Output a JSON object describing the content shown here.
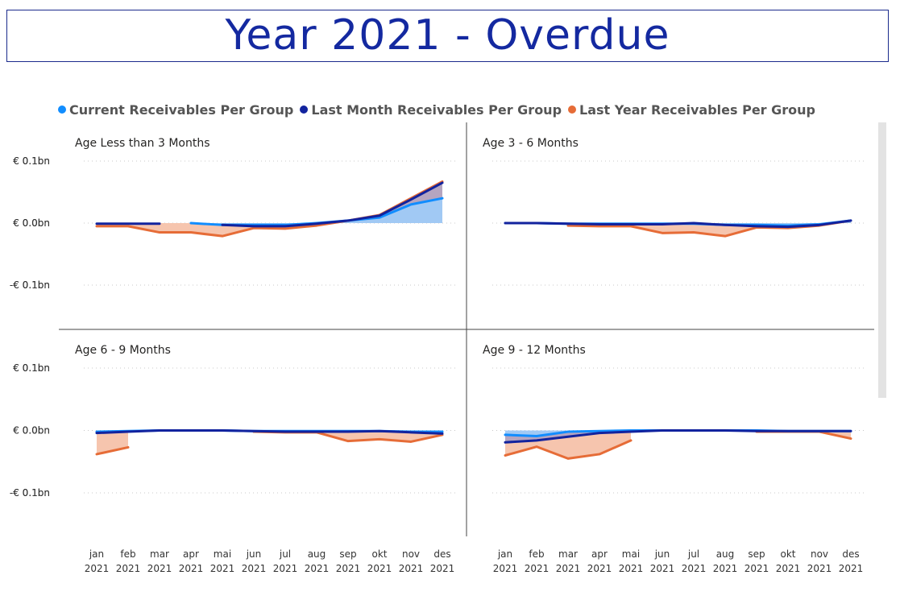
{
  "header": {
    "title": "Year 2021 - Overdue"
  },
  "legend": {
    "items": [
      {
        "label": "Current Receivables Per Group",
        "color": "#118dff"
      },
      {
        "label": "Last Month Receivables Per Group",
        "color": "#12239e"
      },
      {
        "label": "Last Year Receivables Per Group",
        "color": "#e66c37"
      }
    ]
  },
  "chart_data": {
    "type": "line",
    "y_unit": "€ bn",
    "ylim": [
      -0.16,
      0.1
    ],
    "yticks": [
      {
        "value": 0.1,
        "label": "€ 0.1bn"
      },
      {
        "value": 0.0,
        "label": "€ 0.0bn"
      },
      {
        "value": -0.1,
        "label": "-€ 0.1bn"
      }
    ],
    "grid": true,
    "legend_position": "top",
    "categories": [
      [
        "jan",
        "2021"
      ],
      [
        "feb",
        "2021"
      ],
      [
        "mar",
        "2021"
      ],
      [
        "apr",
        "2021"
      ],
      [
        "mai",
        "2021"
      ],
      [
        "jun",
        "2021"
      ],
      [
        "jul",
        "2021"
      ],
      [
        "aug",
        "2021"
      ],
      [
        "sep",
        "2021"
      ],
      [
        "okt",
        "2021"
      ],
      [
        "nov",
        "2021"
      ],
      [
        "des",
        "2021"
      ]
    ],
    "panels": [
      {
        "title": "Age Less than 3 Months",
        "series": [
          {
            "name": "Current Receivables Per Group",
            "values": [
              null,
              null,
              null,
              0.0,
              -0.003,
              -0.003,
              -0.003,
              0.0,
              0.004,
              0.009,
              0.03,
              0.04
            ]
          },
          {
            "name": "Last Month Receivables Per Group",
            "values": [
              -0.001,
              -0.001,
              -0.001,
              null,
              -0.003,
              -0.005,
              -0.005,
              -0.001,
              0.004,
              0.012,
              0.038,
              0.065
            ]
          },
          {
            "name": "Last Year Receivables Per Group",
            "values": [
              -0.005,
              -0.005,
              -0.015,
              -0.015,
              -0.021,
              -0.008,
              -0.009,
              -0.004,
              0.004,
              0.013,
              0.04,
              0.067
            ]
          }
        ]
      },
      {
        "title": "Age 3 - 6 Months",
        "series": [
          {
            "name": "Current Receivables Per Group",
            "values": [
              0.0,
              0.0,
              -0.001,
              -0.001,
              -0.001,
              -0.001,
              -0.001,
              -0.003,
              -0.003,
              -0.004,
              -0.002,
              0.004
            ]
          },
          {
            "name": "Last Month Receivables Per Group",
            "values": [
              0.0,
              0.0,
              -0.001,
              -0.002,
              -0.002,
              -0.002,
              0.0,
              -0.003,
              -0.005,
              -0.006,
              -0.003,
              0.004
            ]
          },
          {
            "name": "Last Year Receivables Per Group",
            "values": [
              null,
              null,
              -0.004,
              -0.005,
              -0.005,
              -0.016,
              -0.015,
              -0.021,
              -0.007,
              -0.008,
              -0.004,
              0.004
            ]
          }
        ]
      },
      {
        "title": "Age 6 - 9 Months",
        "series": [
          {
            "name": "Current Receivables Per Group",
            "values": [
              -0.002,
              -0.001,
              0.0,
              0.0,
              0.0,
              -0.001,
              -0.001,
              -0.001,
              -0.001,
              -0.001,
              -0.002,
              -0.002
            ]
          },
          {
            "name": "Last Month Receivables Per Group",
            "values": [
              -0.004,
              -0.002,
              0.0,
              0.0,
              0.0,
              -0.001,
              -0.002,
              -0.002,
              -0.002,
              -0.001,
              -0.003,
              -0.005
            ]
          },
          {
            "name": "Last Year Receivables Per Group",
            "values": [
              -0.038,
              -0.027,
              null,
              null,
              null,
              -0.002,
              -0.003,
              -0.003,
              -0.017,
              -0.014,
              -0.018,
              -0.007
            ]
          }
        ]
      },
      {
        "title": "Age 9 - 12 Months",
        "series": [
          {
            "name": "Current Receivables Per Group",
            "values": [
              -0.007,
              -0.009,
              -0.002,
              -0.001,
              0.0,
              0.0,
              0.0,
              0.0,
              0.0,
              -0.001,
              -0.001,
              -0.001
            ]
          },
          {
            "name": "Last Month Receivables Per Group",
            "values": [
              -0.019,
              -0.016,
              -0.01,
              -0.004,
              -0.002,
              0.0,
              0.0,
              0.0,
              -0.001,
              -0.001,
              -0.001,
              -0.001
            ]
          },
          {
            "name": "Last Year Receivables Per Group",
            "values": [
              -0.04,
              -0.026,
              -0.045,
              -0.038,
              -0.016,
              null,
              null,
              null,
              -0.002,
              -0.002,
              -0.002,
              -0.013
            ]
          }
        ]
      }
    ]
  }
}
